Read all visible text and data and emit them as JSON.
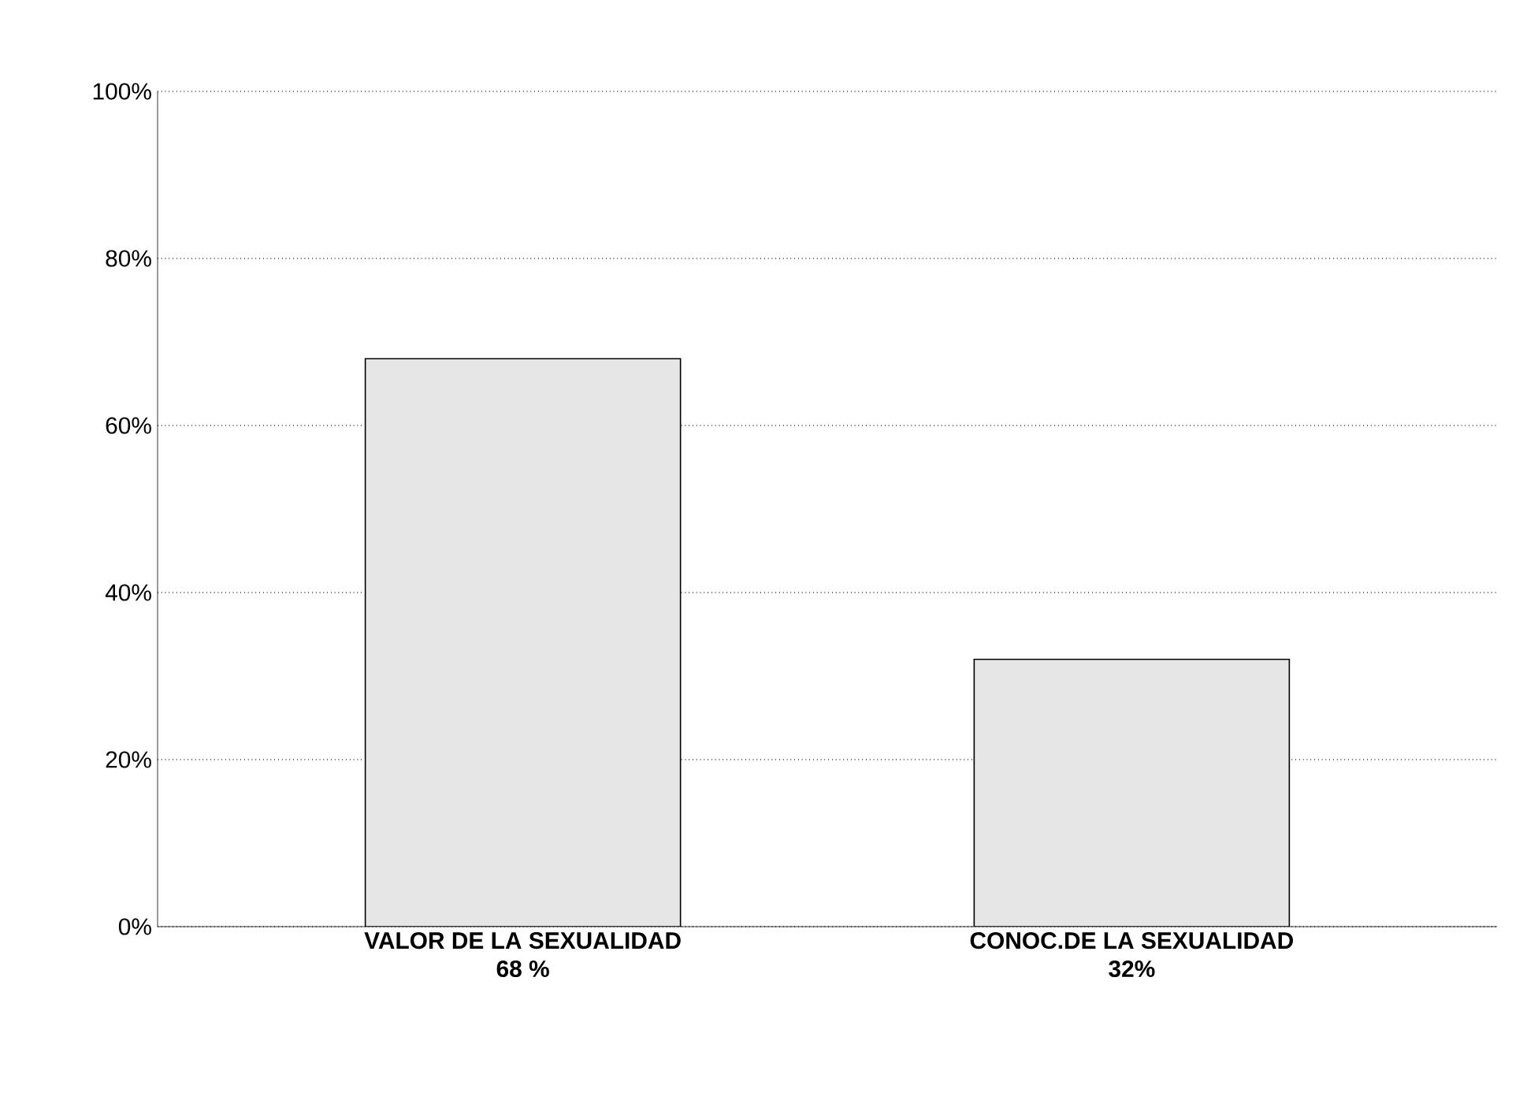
{
  "chart_data": {
    "type": "bar",
    "categories": [
      "VALOR DE LA SEXUALIDAD",
      "CONOC.DE LA SEXUALIDAD"
    ],
    "values": [
      68,
      32
    ],
    "value_labels": [
      "68 %",
      "32%"
    ],
    "color": "#e6e6e6",
    "ylim": [
      0,
      100
    ],
    "yticks": [
      {
        "value": 0,
        "label": "0%"
      },
      {
        "value": 20,
        "label": "20%"
      },
      {
        "value": 40,
        "label": "40%"
      },
      {
        "value": 60,
        "label": "60%"
      },
      {
        "value": 80,
        "label": "80%"
      },
      {
        "value": 100,
        "label": "100%"
      }
    ],
    "grid": "y"
  }
}
